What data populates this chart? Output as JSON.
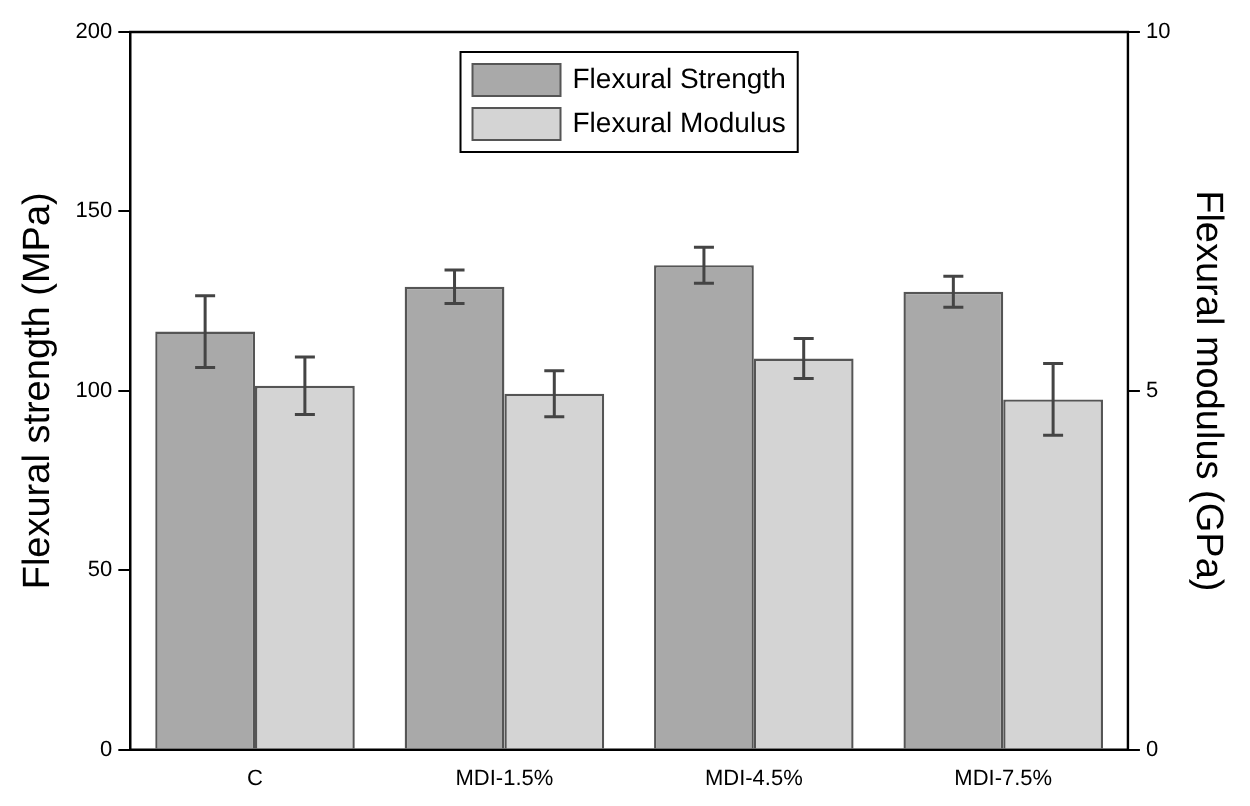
{
  "chart_data": {
    "type": "bar",
    "xlabel": null,
    "ylabel": "Flexural strength (MPa)",
    "y2label": "Flexural modulus (GPa)",
    "categories": [
      "C",
      "MDI-1.5%",
      "MDI-4.5%",
      "MDI-7.5%"
    ],
    "series": [
      {
        "name": "Flexural Strength",
        "color": "#a9a9a9",
        "values": [
          116.5,
          129,
          135,
          127.6
        ],
        "errors": [
          10,
          4.7,
          5,
          4.3
        ]
      },
      {
        "name": "Flexural Modulus",
        "color": "#d4d4d4",
        "axis": "y2",
        "values": [
          5.07,
          4.96,
          5.45,
          4.88
        ],
        "errors": [
          0.4,
          0.32,
          0.28,
          0.5
        ]
      }
    ],
    "ylim": [
      0,
      200
    ],
    "yticks": [
      0,
      50,
      100,
      150,
      200
    ],
    "y2lim": [
      0,
      10
    ],
    "y2ticks": [
      0,
      5,
      10
    ],
    "grid": false,
    "legend": "top"
  }
}
